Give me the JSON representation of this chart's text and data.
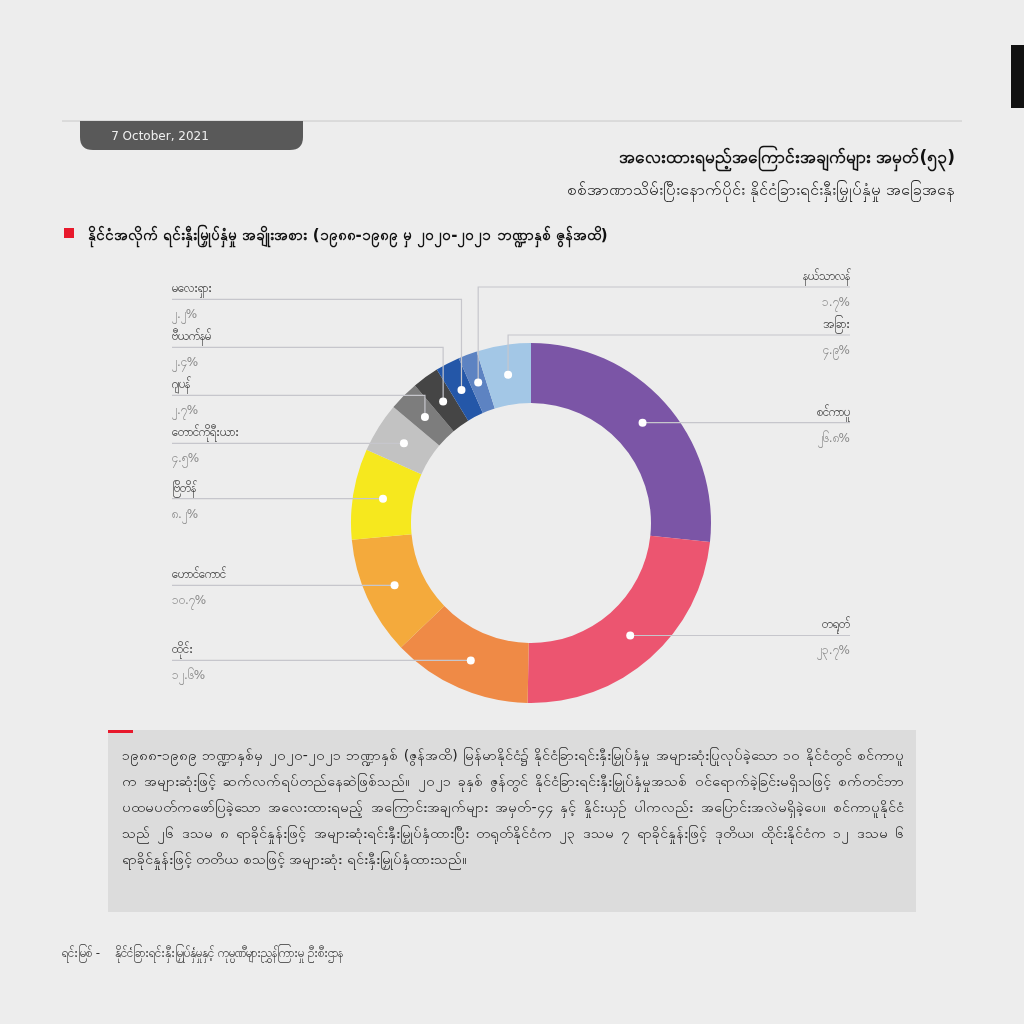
{
  "chart_data": {
    "type": "donut",
    "title": "အလေးထားရမည့်အကြောင်းအချက်များ အမှတ်(၅၃)",
    "subtitle": "စစ်အာဏာသိမ်းပြီးနောက်ပိုင်း နိုင်ငံခြားရင်းနှီးမြှုပ်နှံမှု အခြေအနေ",
    "annotations": [
      "7 October, 2021",
      "နိုင်ငံအလိုက် ရင်းနှီးမြှုပ်နှံမှု အချိုးအစား (၁၉၈၈-၁၉၈၉ မှ ၂၀၂၀-၂၀၂၁ ဘဏ္ဍာနှစ် ဇွန်အထိ)",
      "၁၉၈၈-၁၉၈၉ ဘဏ္ဍာနှစ်မှ ၂၀၂၀-၂၀၂၁ ဘဏ္ဍာနှစ် (ဇွန်အထိ) မြန်မာနိုင်ငံ၌ နိုင်ငံခြားရင်းနှီးမြှုပ်နှံမှု အများဆုံးပြုလုပ်ခဲ့သော ၁၀ နိုင်ငံတွင် စင်ကာပူက အများဆုံးဖြင့် ဆက်လက်ရပ်တည်နေဆဲဖြစ်သည်။ ၂၀၂၁ ခုနှစ် ဇွန်တွင် နိုင်ငံခြားရင်းနှီးမြှုပ်နှံမှုအသစ် ဝင်ရောက်ခဲ့ခြင်းမရှိသဖြင့် စက်တင်ဘာ ပထမပတ်ကဖော်ပြခဲ့သော အလေးထားရမည့် အကြောင်းအချက်များ အမှတ်-၄၄ နှင့် နှိုင်းယှဉ် ပါကလည်း အပြောင်းအလဲမရှိခဲ့ပေ။ စင်ကာပူနိုင်ငံသည် ၂၆ ဒသမ ၈ ရာခိုင်နှုန်းဖြင့် အများဆုံးရင်းနှီးမြှုပ်နှံထားပြီး တရုတ်နိုင်ငံက ၂၃ ဒသမ ၇ ရာခိုင်နှုန်းဖြင့် ဒုတိယ၊ ထိုင်းနိုင်ငံက ၁၂ ဒသမ ၆ ရာခိုင်နှုန်းဖြင့် တတိယ စသဖြင့် အများဆုံး ရင်းနှီးမြှုပ်နှံထားသည်။",
      "ရင်းမြစ် -    နိုင်ငံခြားရင်းနှီးမြှုပ်နှံမှုနှင့် ကုမ္ပဏီများညွှန်ကြားမှု ဦးစီးဌာန"
    ],
    "categories": [
      "စင်ကာပူ",
      "တရုတ်",
      "ထိုင်း",
      "ဟောင်ကောင်",
      "ဗြိတိန်",
      "တောင်ကိုရီးယား",
      "ဂျပန်",
      "ဗီယက်နမ်",
      "မလေးရှား",
      "နယ်သာလန်",
      "အခြား"
    ],
    "values": [
      26.8,
      23.7,
      12.6,
      10.7,
      8.2,
      4.5,
      2.7,
      2.4,
      2.2,
      1.7,
      4.9
    ],
    "value_labels": [
      "၂၆.၈%",
      "၂၃.၇%",
      "၁၂.၆%",
      "၁၀.၇%",
      "၈.၂%",
      "၄.၅%",
      "၂.၇%",
      "၂.၄%",
      "၂.၂%",
      "၁.၇%",
      "၄.၉%"
    ],
    "colors": [
      "#7b55a6",
      "#ec5570",
      "#ef8a46",
      "#f4aa3c",
      "#f6e81e",
      "#c2c2c2",
      "#7d7d7d",
      "#454545",
      "#2457a8",
      "#5d83c2",
      "#a3c7e6"
    ]
  }
}
